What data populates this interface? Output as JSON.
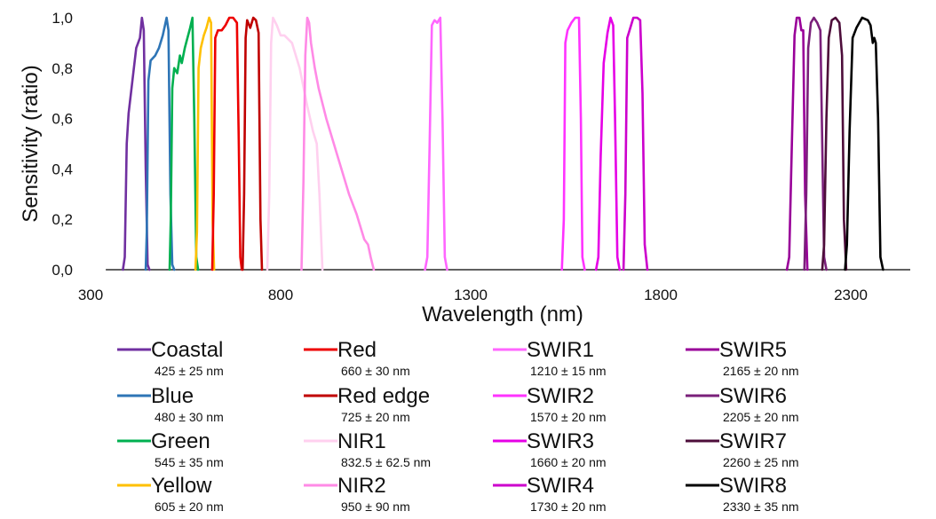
{
  "chart_data": {
    "type": "line",
    "title": "",
    "xlabel": "Wavelength (nm)",
    "ylabel": "Sensitivity (ratio)",
    "xlim": [
      300,
      2550
    ],
    "ylim": [
      0,
      1.0
    ],
    "x_ticks": [
      300,
      800,
      1300,
      1800,
      2300
    ],
    "x_tick_labels": [
      "300",
      "800",
      "1300",
      "1800",
      "2300"
    ],
    "y_ticks": [
      0,
      0.2,
      0.4,
      0.6,
      0.8,
      1.0
    ],
    "y_tick_labels": [
      "0,0",
      "0,2",
      "0,4",
      "0,6",
      "0,8",
      "1,0"
    ],
    "grid": false,
    "legend_placement": "bottom",
    "series": [
      {
        "name": "Coastal",
        "band": "425 ± 25 nm",
        "color": "#7030a0",
        "x": [
          385,
          390,
          395,
          400,
          410,
          420,
          425,
          430,
          435,
          440,
          445,
          450,
          455
        ],
        "y": [
          0,
          0.05,
          0.5,
          0.62,
          0.75,
          0.88,
          0.9,
          0.92,
          1.0,
          0.95,
          0.4,
          0.02,
          0
        ]
      },
      {
        "name": "Blue",
        "band": "480 ± 30 nm",
        "color": "#2e75b6",
        "x": [
          445,
          448,
          452,
          458,
          470,
          480,
          490,
          500,
          505,
          510,
          515,
          520
        ],
        "y": [
          0,
          0.15,
          0.75,
          0.83,
          0.85,
          0.88,
          0.93,
          1.0,
          0.95,
          0.3,
          0.02,
          0
        ]
      },
      {
        "name": "Green",
        "band": "545 ± 35 nm",
        "color": "#00b050",
        "x": [
          508,
          511,
          515,
          520,
          528,
          535,
          540,
          548,
          555,
          562,
          568,
          573,
          578,
          583
        ],
        "y": [
          0,
          0.2,
          0.72,
          0.8,
          0.78,
          0.85,
          0.82,
          0.88,
          0.92,
          0.96,
          1.0,
          0.6,
          0.05,
          0
        ]
      },
      {
        "name": "Yellow",
        "band": "605 ± 20 nm",
        "color": "#ffc000",
        "x": [
          576,
          580,
          584,
          590,
          598,
          605,
          612,
          617,
          621,
          625
        ],
        "y": [
          0,
          0.15,
          0.8,
          0.88,
          0.93,
          0.96,
          1.0,
          0.98,
          0.2,
          0
        ]
      },
      {
        "name": "Red",
        "band": "660 ± 30 nm",
        "color": "#ee0000",
        "x": [
          620,
          624,
          628,
          635,
          645,
          655,
          665,
          675,
          685,
          690,
          694,
          698
        ],
        "y": [
          0,
          0.3,
          0.92,
          0.95,
          0.95,
          0.97,
          1.0,
          1.0,
          0.98,
          0.5,
          0.05,
          0
        ]
      },
      {
        "name": "Red edge",
        "band": "725 ± 20 nm",
        "color": "#c00000",
        "x": [
          700,
          704,
          708,
          712,
          720,
          728,
          735,
          742,
          747,
          751
        ],
        "y": [
          0,
          0.3,
          0.92,
          0.99,
          0.96,
          1.0,
          0.99,
          0.94,
          0.2,
          0
        ]
      },
      {
        "name": "NIR1",
        "band": "832.5 ± 62.5 nm",
        "color": "#ffd0ef",
        "x": [
          765,
          770,
          775,
          780,
          790,
          800,
          810,
          830,
          850,
          870,
          885,
          895,
          902,
          910
        ],
        "y": [
          0,
          0.3,
          0.9,
          1.0,
          0.97,
          0.93,
          0.93,
          0.9,
          0.8,
          0.65,
          0.55,
          0.5,
          0.3,
          0
        ]
      },
      {
        "name": "NIR2",
        "band": "950 ± 90 nm",
        "color": "#ff8ae6",
        "x": [
          855,
          860,
          865,
          870,
          875,
          880,
          890,
          900,
          920,
          950,
          980,
          1000,
          1020,
          1030,
          1037,
          1045
        ],
        "y": [
          0,
          0.35,
          0.85,
          1.0,
          0.98,
          0.9,
          0.8,
          0.72,
          0.6,
          0.45,
          0.3,
          0.22,
          0.12,
          0.1,
          0.05,
          0
        ]
      },
      {
        "name": "SWIR1",
        "band": "1210 ± 15 nm",
        "color": "#ff66ff",
        "x": [
          1180,
          1186,
          1192,
          1198,
          1205,
          1212,
          1220,
          1226,
          1232,
          1238
        ],
        "y": [
          0,
          0.05,
          0.5,
          0.97,
          0.99,
          0.98,
          1.0,
          0.6,
          0.05,
          0
        ]
      },
      {
        "name": "SWIR2",
        "band": "1570 ± 20 nm",
        "color": "#ff33ff",
        "x": [
          1540,
          1545,
          1549,
          1555,
          1565,
          1575,
          1585,
          1590,
          1594,
          1600
        ],
        "y": [
          0,
          0.2,
          0.9,
          0.95,
          0.98,
          1.0,
          1.0,
          0.6,
          0.05,
          0
        ]
      },
      {
        "name": "SWIR3",
        "band": "1660 ± 20 nm",
        "color": "#e600e6",
        "x": [
          1630,
          1636,
          1642,
          1650,
          1660,
          1668,
          1675,
          1680,
          1686,
          1692
        ],
        "y": [
          0,
          0.05,
          0.45,
          0.82,
          0.94,
          1.0,
          0.97,
          0.6,
          0.05,
          0
        ]
      },
      {
        "name": "SWIR4",
        "band": "1730 ± 20 nm",
        "color": "#cc00cc",
        "x": [
          1702,
          1707,
          1712,
          1718,
          1728,
          1738,
          1746,
          1752,
          1758,
          1765
        ],
        "y": [
          0,
          0.3,
          0.92,
          0.95,
          1.0,
          1.0,
          0.99,
          0.7,
          0.1,
          0
        ]
      },
      {
        "name": "SWIR5",
        "band": "2165 ± 20 nm",
        "color": "#990099",
        "x": [
          2132,
          2138,
          2145,
          2152,
          2158,
          2165,
          2170,
          2175,
          2180,
          2186
        ],
        "y": [
          0,
          0.05,
          0.5,
          0.93,
          1.0,
          1.0,
          0.95,
          0.95,
          0.3,
          0
        ]
      },
      {
        "name": "SWIR6",
        "band": "2205 ± 20 nm",
        "color": "#7a1f7a",
        "x": [
          2178,
          2183,
          2188,
          2195,
          2203,
          2212,
          2220,
          2225,
          2230,
          2236
        ],
        "y": [
          0,
          0.3,
          0.88,
          0.98,
          1.0,
          0.98,
          0.95,
          0.5,
          0.05,
          0
        ]
      },
      {
        "name": "SWIR7",
        "band": "2260 ± 25 nm",
        "color": "#4d0d3a",
        "x": [
          2225,
          2230,
          2236,
          2242,
          2250,
          2260,
          2270,
          2277,
          2282,
          2288
        ],
        "y": [
          0,
          0.1,
          0.6,
          0.92,
          0.99,
          1.0,
          0.98,
          0.85,
          0.2,
          0
        ]
      },
      {
        "name": "SWIR8",
        "band": "2330 ± 35 nm",
        "color": "#000000",
        "x": [
          2285,
          2290,
          2297,
          2305,
          2315,
          2330,
          2345,
          2352,
          2358,
          2362,
          2366,
          2372,
          2378,
          2385
        ],
        "y": [
          0,
          0.1,
          0.55,
          0.92,
          0.96,
          1.0,
          0.99,
          0.97,
          0.9,
          0.92,
          0.9,
          0.6,
          0.05,
          0
        ]
      }
    ]
  }
}
